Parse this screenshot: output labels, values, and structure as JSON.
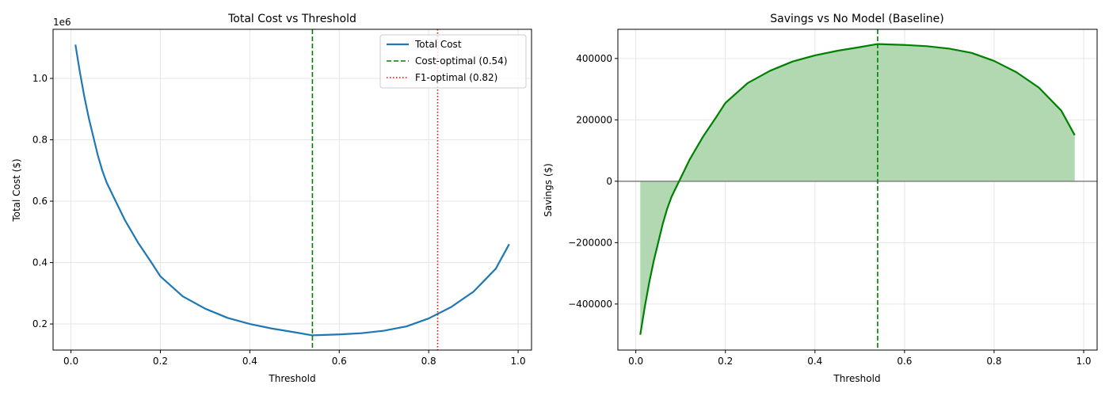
{
  "chart_data": [
    {
      "type": "line",
      "title": "Total Cost vs Threshold",
      "xlabel": "Threshold",
      "ylabel": "Total Cost ($)",
      "y_offset_label": "1e6",
      "xlim": [
        -0.04,
        1.03
      ],
      "ylim": [
        115000,
        1160000
      ],
      "grid": true,
      "legend_position": "top-right",
      "x_ticks": [
        "0.0",
        "0.2",
        "0.4",
        "0.6",
        "0.8",
        "1.0"
      ],
      "y_ticks": [
        "0.2",
        "0.4",
        "0.6",
        "0.8",
        "1.0"
      ],
      "x": [
        0.01,
        0.02,
        0.03,
        0.04,
        0.05,
        0.06,
        0.07,
        0.08,
        0.09,
        0.1,
        0.12,
        0.15,
        0.18,
        0.2,
        0.25,
        0.3,
        0.35,
        0.4,
        0.45,
        0.5,
        0.54,
        0.6,
        0.65,
        0.7,
        0.75,
        0.8,
        0.85,
        0.9,
        0.95,
        0.98
      ],
      "series": [
        {
          "name": "Total Cost",
          "color": "#1f77b4",
          "values": [
            1110000,
            1020000,
            940000,
            870000,
            810000,
            750000,
            700000,
            660000,
            630000,
            600000,
            540000,
            465000,
            400000,
            355000,
            290000,
            250000,
            220000,
            200000,
            185000,
            173000,
            163000,
            166000,
            170000,
            178000,
            192000,
            218000,
            255000,
            305000,
            380000,
            460000
          ]
        }
      ],
      "vlines": [
        {
          "name": "Cost-optimal (0.54)",
          "x": 0.54,
          "color": "#008000",
          "style": "dashed"
        },
        {
          "name": "F1-optimal (0.82)",
          "x": 0.82,
          "color": "#ff0000",
          "style": "dotted"
        }
      ]
    },
    {
      "type": "area",
      "title": "Savings vs No Model (Baseline)",
      "xlabel": "Threshold",
      "ylabel": "Savings ($)",
      "xlim": [
        -0.04,
        1.03
      ],
      "ylim": [
        -550000,
        495000
      ],
      "grid": true,
      "x_ticks": [
        "0.0",
        "0.2",
        "0.4",
        "0.6",
        "0.8",
        "1.0"
      ],
      "y_ticks": [
        "400000",
        "200000",
        "0",
        "−200000",
        "−400000"
      ],
      "x": [
        0.01,
        0.02,
        0.03,
        0.04,
        0.05,
        0.06,
        0.07,
        0.08,
        0.09,
        0.1,
        0.12,
        0.15,
        0.18,
        0.2,
        0.25,
        0.3,
        0.35,
        0.4,
        0.45,
        0.5,
        0.54,
        0.6,
        0.65,
        0.7,
        0.75,
        0.8,
        0.85,
        0.9,
        0.95,
        0.98
      ],
      "series": [
        {
          "color": "#008000",
          "fill": "#b2d8b2",
          "values": [
            -500000,
            -410000,
            -330000,
            -260000,
            -200000,
            -140000,
            -90000,
            -50000,
            -20000,
            10000,
            70000,
            145000,
            210000,
            255000,
            320000,
            360000,
            390000,
            410000,
            425000,
            437000,
            447000,
            444000,
            440000,
            432000,
            418000,
            392000,
            355000,
            305000,
            230000,
            150000
          ]
        }
      ],
      "hline": {
        "y": 0,
        "color": "#808080"
      },
      "vlines": [
        {
          "x": 0.54,
          "color": "#008000",
          "style": "dashed"
        }
      ]
    }
  ]
}
